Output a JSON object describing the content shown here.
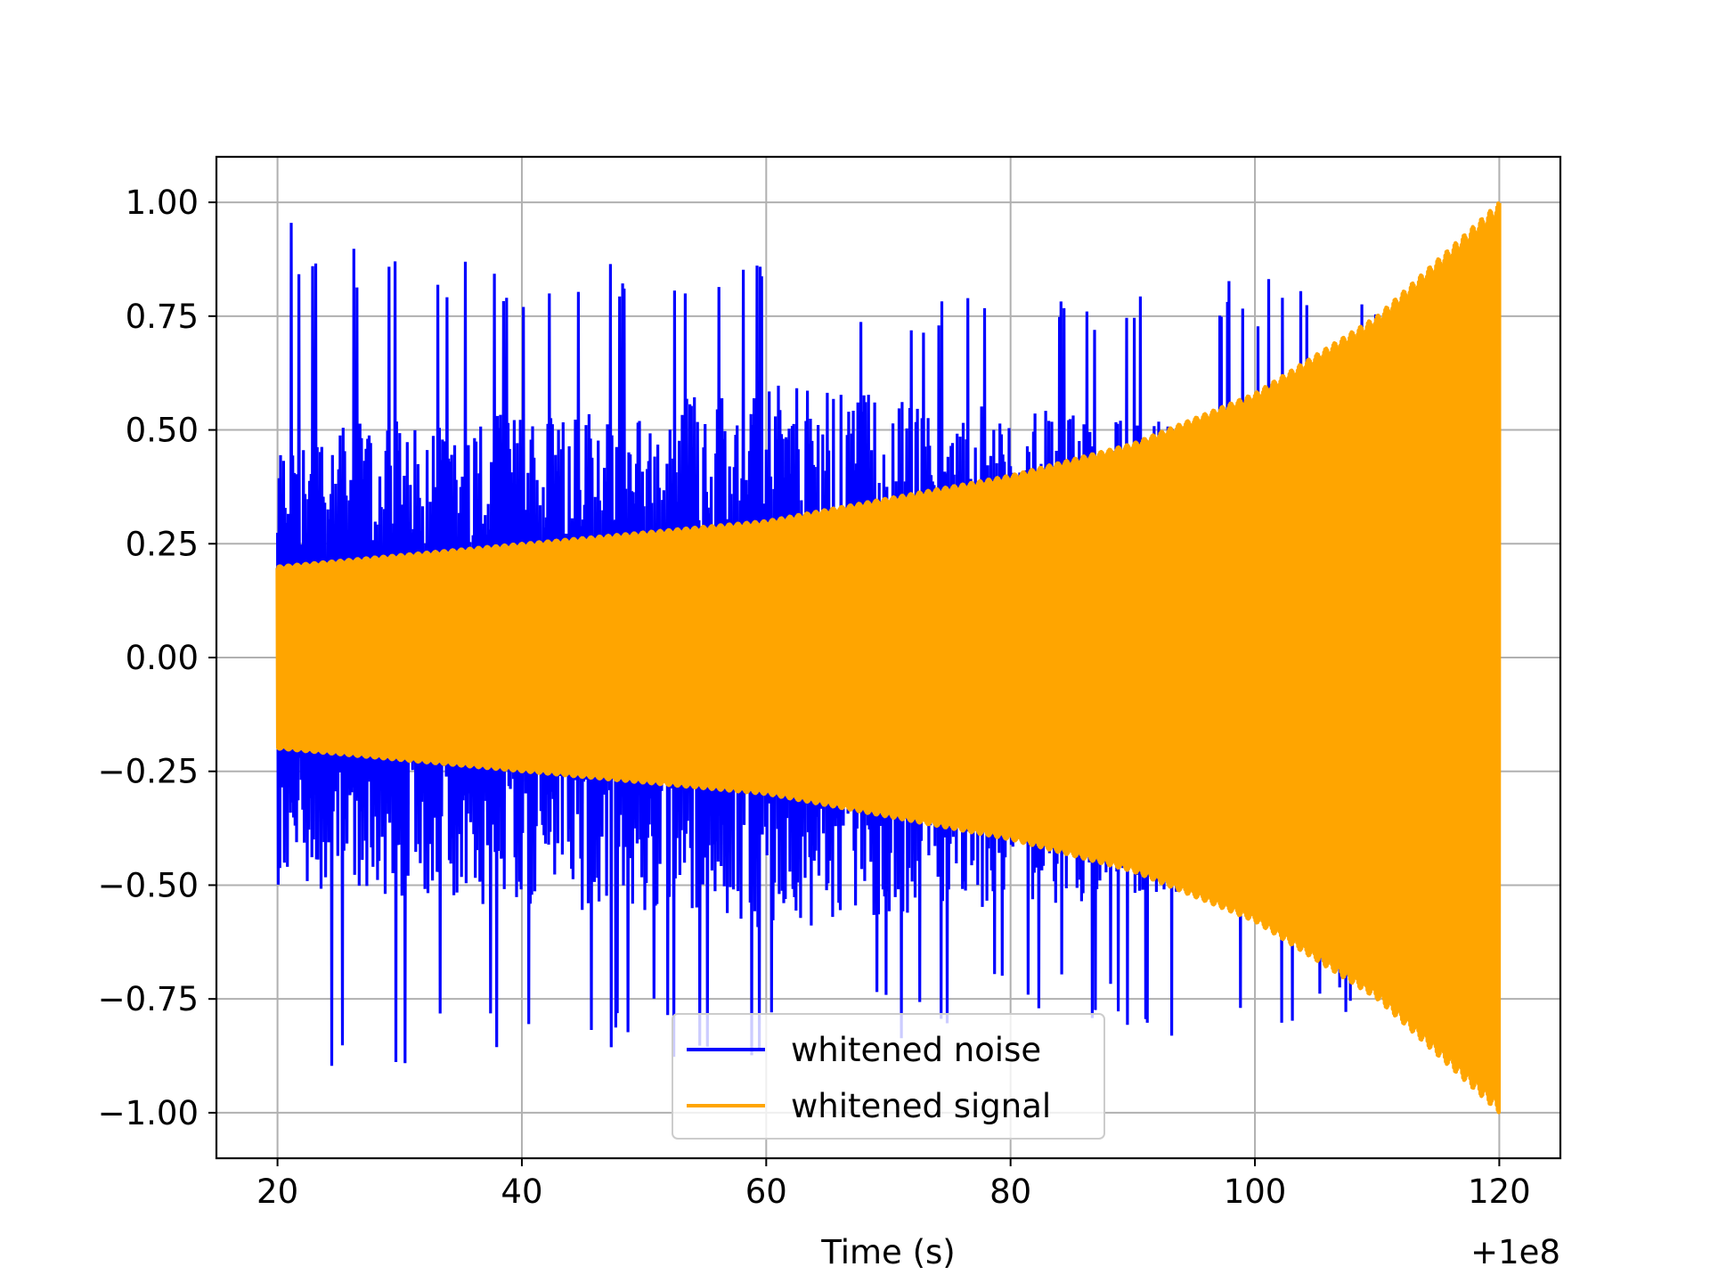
{
  "chart_data": {
    "type": "line",
    "title": "",
    "xlabel": "Time (s)",
    "ylabel": "",
    "x_offset_text": "+1e8",
    "xlim": [
      15,
      125
    ],
    "ylim": [
      -1.1,
      1.1
    ],
    "x_ticks": [
      20,
      40,
      60,
      80,
      100,
      120
    ],
    "x_tick_labels": [
      "20",
      "40",
      "60",
      "80",
      "100",
      "120"
    ],
    "y_ticks": [
      1.0,
      0.75,
      0.5,
      0.25,
      0.0,
      -0.25,
      -0.5,
      -0.75,
      -1.0
    ],
    "y_tick_labels": [
      "1.00",
      "0.75",
      "0.50",
      "0.25",
      "0.00",
      "−0.25",
      "−0.50",
      "−0.75",
      "−1.00"
    ],
    "grid": true,
    "legend_position": "bottom-center",
    "series": [
      {
        "name": "whitened noise",
        "color": "#0000ff",
        "x_range": [
          20,
          120
        ],
        "envelope_x": [
          20,
          40,
          60,
          80,
          100,
          120
        ],
        "typical_amplitude": [
          0.5,
          0.55,
          0.6,
          0.55,
          0.5,
          0.4
        ],
        "peak_amplitude": [
          1.0,
          0.85,
          0.9,
          0.8,
          0.85,
          0.7
        ]
      },
      {
        "name": "whitened signal",
        "color": "#ffa500",
        "x_range": [
          20,
          120
        ],
        "envelope_x": [
          20,
          40,
          60,
          80,
          90,
          100,
          110,
          120
        ],
        "amplitude": [
          0.2,
          0.25,
          0.3,
          0.4,
          0.47,
          0.58,
          0.75,
          1.0
        ]
      }
    ]
  }
}
